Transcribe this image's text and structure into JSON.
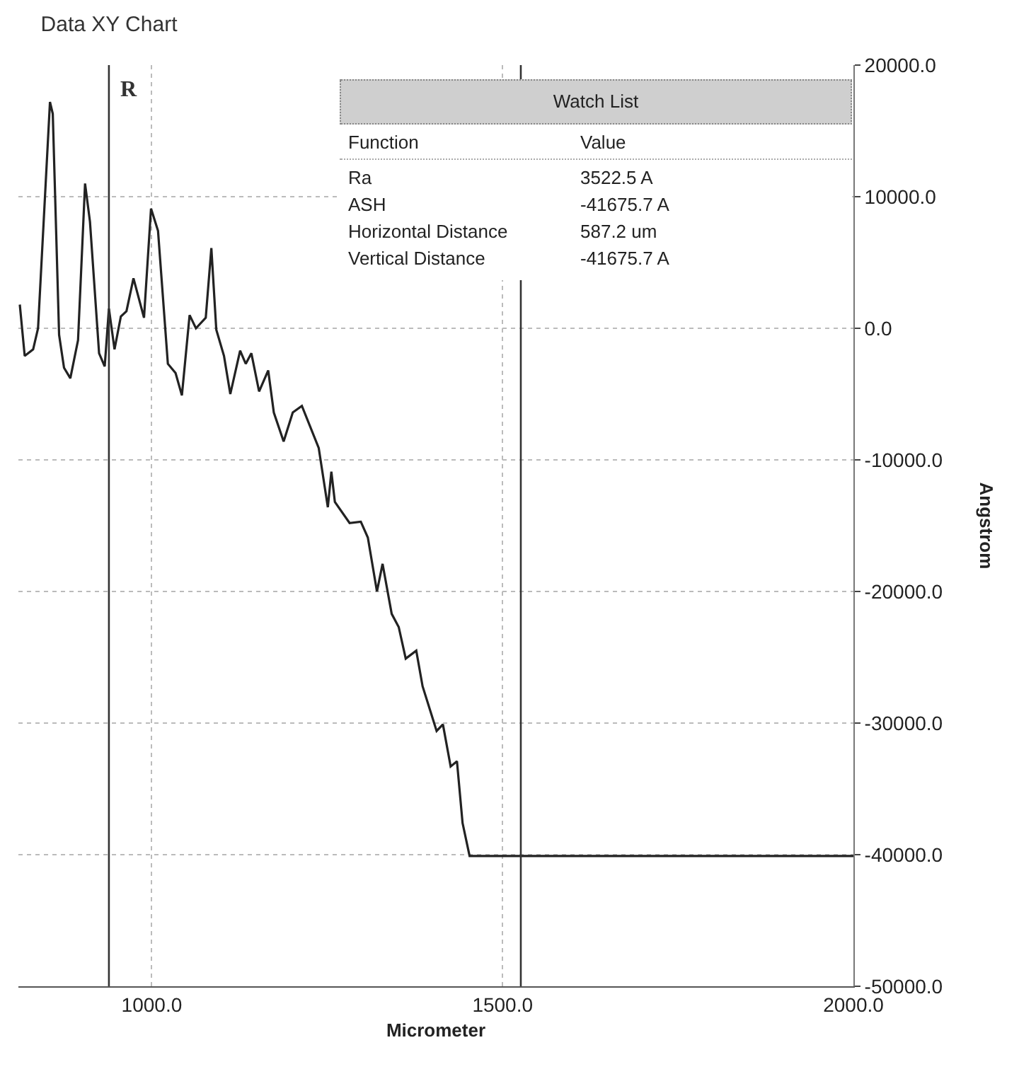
{
  "chart_data": {
    "type": "line",
    "title": "Data XY Chart",
    "xlabel": "Micrometer",
    "ylabel": "Angstrom",
    "x": [
      812,
      819,
      831,
      838,
      855,
      859,
      868,
      875,
      884,
      895,
      905,
      912,
      925,
      933,
      939,
      947,
      956,
      964,
      974,
      989,
      999,
      1009,
      1023,
      1034,
      1043,
      1054,
      1063,
      1077,
      1085,
      1092,
      1103,
      1112,
      1126,
      1134,
      1142,
      1153,
      1166,
      1174,
      1188,
      1201,
      1214,
      1238,
      1251,
      1256,
      1261,
      1282,
      1298,
      1308,
      1321,
      1329,
      1342,
      1352,
      1362,
      1377,
      1386,
      1406,
      1415,
      1426,
      1435,
      1443,
      1453,
      2000
    ],
    "series": [
      {
        "color": "#222222",
        "values": [
          1800,
          -2100,
          -1600,
          0,
          17200,
          16300,
          -500,
          -3000,
          -3800,
          -900,
          11000,
          8100,
          -1900,
          -2900,
          1500,
          -1600,
          900,
          1300,
          3800,
          800,
          9100,
          7400,
          -2700,
          -3400,
          -5100,
          1000,
          0,
          800,
          6100,
          -100,
          -2100,
          -5000,
          -1700,
          -2700,
          -1900,
          -4800,
          -3200,
          -6400,
          -8600,
          -6400,
          -5900,
          -9100,
          -13600,
          -10900,
          -13200,
          -14800,
          -14700,
          -15900,
          -20000,
          -17900,
          -21700,
          -22700,
          -25100,
          -24500,
          -27200,
          -30600,
          -30100,
          -33300,
          -32900,
          -37600,
          -40100,
          -40100
        ]
      }
    ],
    "xlim": [
      810,
      2000
    ],
    "ylim": [
      -50000,
      20000
    ],
    "xticks": [
      {
        "value": 1000,
        "label": "1000.0"
      },
      {
        "value": 1500,
        "label": "1500.0"
      },
      {
        "value": 2000,
        "label": "2000.0"
      }
    ],
    "yticks": [
      {
        "value": -50000,
        "label": "-50000.0"
      },
      {
        "value": -40000,
        "label": "-40000.0"
      },
      {
        "value": -30000,
        "label": "-30000.0"
      },
      {
        "value": -20000,
        "label": "-20000.0"
      },
      {
        "value": -10000,
        "label": "-10000.0"
      },
      {
        "value": 0,
        "label": "0.0"
      },
      {
        "value": 10000,
        "label": "10000.0"
      },
      {
        "value": 20000,
        "label": "20000.0"
      }
    ],
    "ref_lines": [
      {
        "axis": "x",
        "value": 939,
        "label": "R",
        "color": "#333333"
      },
      {
        "axis": "x",
        "value": 1526,
        "color": "#333333"
      }
    ],
    "annotations": [
      "Watch List",
      "Function",
      "Value",
      "Ra",
      "3522.5 A",
      "ASH",
      "-41675.7 A",
      "Horizontal Distance",
      "587.2 um",
      "Vertical Distance",
      "-41675.7 A"
    ],
    "grid": true,
    "line_style": "solid",
    "marker": "none"
  }
}
